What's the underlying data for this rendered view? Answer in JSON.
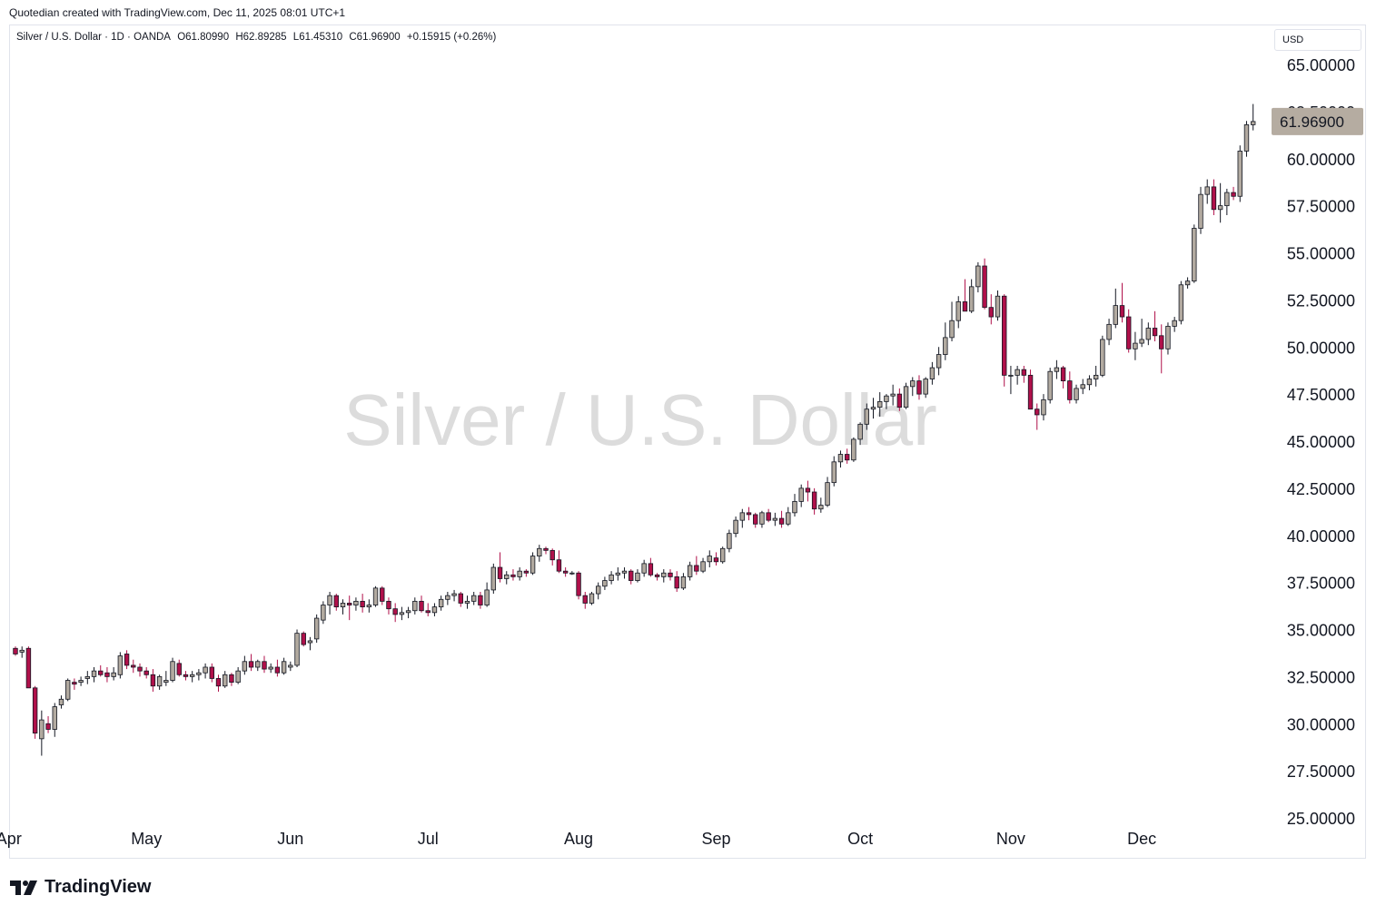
{
  "header": {
    "credit": "Quotedian created with TradingView.com, Dec 11, 2025 08:01 UTC+1"
  },
  "legend": {
    "symbol": "Silver / U.S. Dollar · 1D · OANDA",
    "open": "O61.80990",
    "high": "H62.89285",
    "low": "L61.45310",
    "close": "C61.96900",
    "change": "+0.15915 (+0.26%)"
  },
  "watermark": "Silver / U.S. Dollar",
  "currency_label": "USD",
  "footer": {
    "brand": "TradingView"
  },
  "colors": {
    "up_body": "#b2aaa0",
    "down_body": "#b0104a",
    "outline": "#131722",
    "price_badge": "#b5aca1",
    "watermark": "#dcdcdc"
  },
  "chart_data": {
    "type": "candlestick",
    "ylim": [
      25,
      65
    ],
    "y_ticks": [
      "65.00000",
      "62.50000",
      "60.00000",
      "57.50000",
      "55.00000",
      "52.50000",
      "50.00000",
      "47.50000",
      "45.00000",
      "42.50000",
      "40.00000",
      "37.50000",
      "35.00000",
      "32.50000",
      "30.00000",
      "27.50000",
      "25.00000"
    ],
    "x_labels": [
      {
        "label": "Apr",
        "index": -1
      },
      {
        "label": "May",
        "index": 20
      },
      {
        "label": "Jun",
        "index": 42
      },
      {
        "label": "Jul",
        "index": 63
      },
      {
        "label": "Aug",
        "index": 86
      },
      {
        "label": "Sep",
        "index": 107
      },
      {
        "label": "Oct",
        "index": 129
      },
      {
        "label": "Nov",
        "index": 152
      },
      {
        "label": "Dec",
        "index": 172
      }
    ],
    "last_price": "61.96900",
    "ohlc": [
      [
        34.0,
        34.1,
        33.6,
        33.7
      ],
      [
        33.8,
        34.1,
        33.5,
        33.9
      ],
      [
        34.0,
        34.1,
        32.0,
        31.9
      ],
      [
        31.9,
        32.0,
        29.2,
        29.5
      ],
      [
        29.2,
        30.7,
        28.3,
        30.2
      ],
      [
        30.0,
        30.4,
        29.5,
        29.7
      ],
      [
        29.7,
        31.1,
        29.3,
        30.9
      ],
      [
        31.0,
        31.5,
        30.8,
        31.3
      ],
      [
        31.3,
        32.4,
        31.2,
        32.3
      ],
      [
        32.2,
        32.4,
        31.8,
        32.1
      ],
      [
        32.2,
        32.5,
        32.0,
        32.3
      ],
      [
        32.4,
        32.8,
        32.1,
        32.5
      ],
      [
        32.5,
        33.0,
        32.2,
        32.8
      ],
      [
        32.8,
        33.1,
        32.5,
        32.6
      ],
      [
        32.7,
        33.0,
        32.2,
        32.5
      ],
      [
        32.5,
        33.0,
        32.3,
        32.7
      ],
      [
        32.6,
        33.8,
        32.4,
        33.6
      ],
      [
        33.7,
        33.9,
        32.9,
        33.1
      ],
      [
        33.1,
        33.4,
        32.7,
        33.0
      ],
      [
        33.0,
        33.2,
        32.5,
        32.8
      ],
      [
        32.8,
        33.0,
        32.4,
        32.6
      ],
      [
        32.6,
        32.9,
        31.7,
        32.0
      ],
      [
        32.0,
        32.6,
        31.8,
        32.5
      ],
      [
        32.2,
        32.8,
        32.0,
        32.3
      ],
      [
        32.3,
        33.5,
        32.2,
        33.3
      ],
      [
        33.2,
        33.4,
        32.5,
        32.6
      ],
      [
        32.6,
        32.8,
        32.3,
        32.5
      ],
      [
        32.5,
        32.8,
        32.2,
        32.6
      ],
      [
        32.6,
        32.9,
        32.3,
        32.7
      ],
      [
        32.7,
        33.2,
        32.4,
        33.0
      ],
      [
        33.0,
        33.2,
        32.2,
        32.4
      ],
      [
        32.4,
        32.6,
        31.7,
        32.0
      ],
      [
        32.0,
        32.8,
        31.9,
        32.6
      ],
      [
        32.6,
        32.7,
        32.0,
        32.2
      ],
      [
        32.2,
        33.0,
        32.1,
        32.8
      ],
      [
        32.8,
        33.6,
        32.6,
        33.3
      ],
      [
        33.3,
        33.7,
        32.8,
        33.0
      ],
      [
        33.0,
        33.4,
        32.8,
        33.3
      ],
      [
        33.3,
        33.6,
        32.7,
        32.9
      ],
      [
        32.9,
        33.2,
        32.7,
        33.0
      ],
      [
        33.0,
        33.4,
        32.5,
        32.7
      ],
      [
        32.7,
        33.5,
        32.6,
        33.3
      ],
      [
        33.0,
        33.3,
        32.8,
        33.1
      ],
      [
        33.1,
        35.0,
        33.0,
        34.8
      ],
      [
        34.8,
        34.9,
        34.1,
        34.2
      ],
      [
        34.3,
        34.6,
        33.9,
        34.4
      ],
      [
        34.5,
        35.8,
        34.3,
        35.6
      ],
      [
        35.5,
        36.5,
        35.3,
        36.3
      ],
      [
        36.3,
        37.0,
        35.8,
        36.8
      ],
      [
        36.8,
        36.9,
        36.0,
        36.2
      ],
      [
        36.2,
        36.6,
        35.8,
        36.4
      ],
      [
        36.4,
        36.8,
        35.5,
        36.3
      ],
      [
        36.3,
        36.7,
        36.0,
        36.5
      ],
      [
        36.5,
        36.9,
        35.9,
        36.2
      ],
      [
        36.2,
        36.6,
        35.9,
        36.3
      ],
      [
        36.3,
        37.3,
        36.2,
        37.2
      ],
      [
        37.2,
        37.3,
        36.3,
        36.5
      ],
      [
        36.5,
        36.7,
        35.8,
        36.1
      ],
      [
        36.1,
        36.4,
        35.4,
        35.8
      ],
      [
        35.8,
        36.2,
        35.5,
        35.9
      ],
      [
        35.9,
        36.2,
        35.6,
        36.0
      ],
      [
        36.0,
        36.7,
        35.8,
        36.5
      ],
      [
        36.5,
        36.8,
        35.9,
        36.0
      ],
      [
        36.0,
        36.4,
        35.7,
        35.9
      ],
      [
        35.9,
        36.4,
        35.7,
        36.2
      ],
      [
        36.2,
        36.8,
        36.0,
        36.6
      ],
      [
        36.6,
        37.0,
        36.3,
        36.8
      ],
      [
        36.8,
        37.1,
        36.5,
        36.9
      ],
      [
        36.9,
        37.0,
        36.2,
        36.4
      ],
      [
        36.4,
        36.8,
        36.1,
        36.5
      ],
      [
        36.5,
        37.0,
        36.3,
        36.8
      ],
      [
        36.8,
        37.0,
        36.1,
        36.3
      ],
      [
        36.3,
        37.5,
        36.2,
        37.1
      ],
      [
        37.1,
        38.5,
        36.9,
        38.3
      ],
      [
        38.3,
        39.1,
        37.5,
        37.7
      ],
      [
        37.7,
        38.1,
        37.4,
        37.9
      ],
      [
        37.9,
        38.2,
        37.6,
        37.8
      ],
      [
        37.8,
        38.3,
        37.6,
        38.1
      ],
      [
        38.1,
        38.2,
        37.8,
        38.0
      ],
      [
        38.0,
        39.1,
        37.9,
        38.9
      ],
      [
        38.9,
        39.5,
        38.6,
        39.3
      ],
      [
        39.3,
        39.4,
        39.0,
        39.2
      ],
      [
        39.2,
        39.3,
        38.4,
        38.7
      ],
      [
        38.7,
        39.2,
        38.0,
        38.1
      ],
      [
        38.1,
        38.3,
        37.8,
        38.0
      ],
      [
        38.0,
        38.1,
        37.9,
        38.0
      ],
      [
        38.0,
        38.1,
        36.6,
        36.8
      ],
      [
        36.8,
        37.0,
        36.1,
        36.4
      ],
      [
        36.4,
        37.0,
        36.3,
        36.9
      ],
      [
        36.9,
        37.5,
        36.6,
        37.3
      ],
      [
        37.3,
        37.8,
        37.1,
        37.6
      ],
      [
        37.6,
        38.1,
        37.4,
        37.9
      ],
      [
        37.9,
        38.3,
        37.6,
        38.0
      ],
      [
        38.0,
        38.3,
        37.7,
        38.1
      ],
      [
        38.1,
        38.2,
        37.4,
        37.6
      ],
      [
        37.6,
        38.2,
        37.5,
        38.0
      ],
      [
        38.0,
        38.7,
        37.8,
        38.5
      ],
      [
        38.5,
        38.8,
        37.8,
        37.9
      ],
      [
        37.9,
        38.0,
        37.6,
        37.8
      ],
      [
        37.8,
        38.2,
        37.5,
        38.0
      ],
      [
        38.0,
        38.2,
        37.6,
        37.8
      ],
      [
        37.8,
        38.1,
        37.0,
        37.2
      ],
      [
        37.2,
        38.0,
        37.1,
        37.8
      ],
      [
        37.8,
        38.6,
        37.6,
        38.4
      ],
      [
        38.4,
        38.9,
        37.9,
        38.1
      ],
      [
        38.1,
        38.8,
        38.0,
        38.6
      ],
      [
        38.6,
        39.2,
        38.3,
        38.9
      ],
      [
        38.8,
        39.1,
        38.4,
        38.6
      ],
      [
        38.6,
        39.4,
        38.5,
        39.3
      ],
      [
        39.3,
        40.3,
        39.1,
        40.1
      ],
      [
        40.1,
        41.0,
        39.9,
        40.8
      ],
      [
        40.8,
        41.4,
        40.4,
        41.2
      ],
      [
        41.2,
        41.5,
        40.8,
        41.1
      ],
      [
        41.1,
        41.2,
        40.4,
        40.6
      ],
      [
        40.6,
        41.3,
        40.4,
        41.2
      ],
      [
        41.2,
        41.4,
        40.7,
        40.8
      ],
      [
        40.8,
        41.2,
        40.5,
        40.9
      ],
      [
        40.9,
        41.3,
        40.4,
        40.6
      ],
      [
        40.6,
        41.5,
        40.5,
        41.2
      ],
      [
        41.2,
        42.2,
        41.0,
        41.8
      ],
      [
        41.8,
        42.7,
        41.5,
        42.5
      ],
      [
        42.5,
        42.9,
        41.8,
        42.3
      ],
      [
        42.3,
        42.5,
        41.1,
        41.4
      ],
      [
        41.4,
        42.0,
        41.2,
        41.6
      ],
      [
        41.6,
        43.1,
        41.5,
        42.8
      ],
      [
        42.8,
        44.2,
        42.6,
        43.9
      ],
      [
        43.9,
        44.5,
        43.6,
        44.3
      ],
      [
        44.3,
        44.6,
        43.8,
        44.0
      ],
      [
        44.0,
        45.2,
        43.9,
        45.1
      ],
      [
        45.1,
        46.0,
        44.8,
        45.9
      ],
      [
        45.9,
        47.0,
        45.6,
        46.7
      ],
      [
        46.7,
        47.3,
        46.2,
        46.8
      ],
      [
        46.8,
        47.6,
        46.3,
        47.1
      ],
      [
        47.1,
        47.5,
        46.7,
        47.4
      ],
      [
        47.4,
        48.0,
        46.9,
        47.5
      ],
      [
        47.5,
        47.8,
        46.6,
        46.8
      ],
      [
        46.8,
        48.1,
        46.7,
        47.9
      ],
      [
        47.9,
        48.4,
        47.4,
        48.2
      ],
      [
        48.2,
        48.5,
        47.2,
        47.5
      ],
      [
        47.5,
        48.4,
        47.3,
        48.3
      ],
      [
        48.3,
        49.2,
        48.0,
        48.9
      ],
      [
        48.9,
        50.0,
        48.5,
        49.6
      ],
      [
        49.6,
        51.3,
        49.3,
        50.5
      ],
      [
        50.5,
        52.4,
        50.3,
        51.4
      ],
      [
        51.4,
        52.7,
        51.0,
        52.4
      ],
      [
        52.4,
        53.6,
        52.0,
        51.9
      ],
      [
        51.9,
        53.6,
        51.8,
        53.2
      ],
      [
        53.2,
        54.5,
        52.9,
        54.3
      ],
      [
        54.3,
        54.7,
        52.0,
        52.1
      ],
      [
        52.1,
        52.8,
        51.2,
        51.6
      ],
      [
        51.6,
        53.0,
        51.4,
        52.7
      ],
      [
        52.7,
        52.8,
        47.9,
        48.5
      ],
      [
        48.5,
        49.0,
        47.5,
        48.5
      ],
      [
        48.5,
        49.0,
        48.0,
        48.8
      ],
      [
        48.8,
        49.0,
        48.1,
        48.5
      ],
      [
        48.5,
        48.8,
        47.1,
        46.7
      ],
      [
        46.7,
        47.0,
        45.6,
        46.4
      ],
      [
        46.4,
        47.5,
        46.1,
        47.2
      ],
      [
        47.2,
        48.9,
        47.0,
        48.7
      ],
      [
        48.7,
        49.3,
        48.3,
        48.9
      ],
      [
        48.9,
        49.0,
        47.8,
        48.2
      ],
      [
        48.2,
        48.7,
        47.0,
        47.2
      ],
      [
        47.2,
        48.0,
        47.0,
        47.8
      ],
      [
        47.8,
        48.3,
        47.5,
        48.0
      ],
      [
        48.0,
        48.5,
        47.7,
        48.3
      ],
      [
        48.3,
        49.0,
        47.9,
        48.5
      ],
      [
        48.5,
        50.6,
        48.4,
        50.4
      ],
      [
        50.4,
        51.5,
        50.1,
        51.2
      ],
      [
        51.2,
        53.1,
        51.0,
        52.2
      ],
      [
        52.2,
        53.4,
        51.3,
        51.6
      ],
      [
        51.6,
        52.0,
        49.7,
        49.9
      ],
      [
        49.9,
        50.8,
        49.3,
        50.2
      ],
      [
        50.2,
        51.5,
        50.0,
        50.4
      ],
      [
        50.4,
        51.3,
        50.1,
        51.0
      ],
      [
        51.0,
        51.9,
        50.3,
        50.6
      ],
      [
        50.6,
        51.2,
        48.6,
        49.9
      ],
      [
        49.9,
        51.3,
        49.6,
        51.1
      ],
      [
        51.1,
        51.6,
        50.8,
        51.4
      ],
      [
        51.4,
        53.5,
        51.2,
        53.3
      ],
      [
        53.3,
        53.7,
        53.1,
        53.5
      ],
      [
        53.5,
        56.5,
        53.4,
        56.3
      ],
      [
        56.3,
        58.5,
        56.0,
        58.1
      ],
      [
        58.1,
        58.9,
        57.6,
        58.5
      ],
      [
        58.5,
        58.9,
        57.0,
        57.3
      ],
      [
        57.3,
        58.7,
        56.6,
        57.5
      ],
      [
        57.5,
        58.4,
        57.0,
        58.2
      ],
      [
        58.2,
        58.5,
        57.8,
        58.0
      ],
      [
        58.0,
        60.7,
        57.7,
        60.4
      ],
      [
        60.4,
        62.0,
        60.1,
        61.8
      ],
      [
        61.8,
        62.9,
        61.5,
        61.97
      ]
    ]
  }
}
